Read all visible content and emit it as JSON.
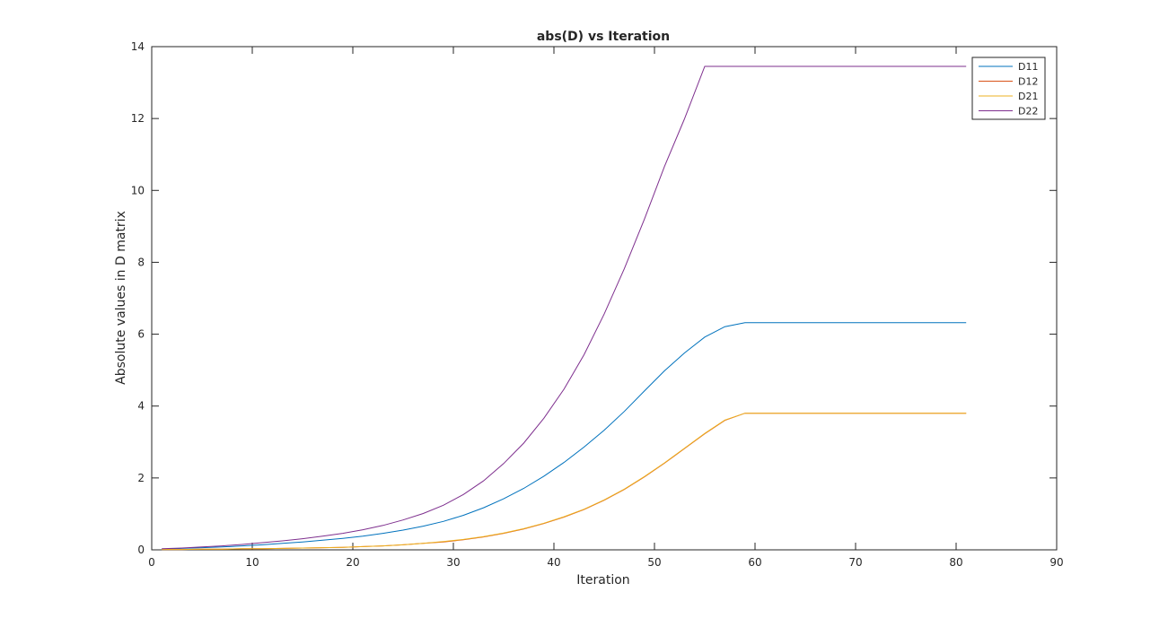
{
  "chart_data": {
    "type": "line",
    "title": "abs(D) vs Iteration",
    "xlabel": "Iteration",
    "ylabel": "Absolute values in D matrix",
    "xlim": [
      0,
      90
    ],
    "ylim": [
      0,
      14
    ],
    "xticks": [
      0,
      10,
      20,
      30,
      40,
      50,
      60,
      70,
      80,
      90
    ],
    "yticks": [
      0,
      2,
      4,
      6,
      8,
      10,
      12,
      14
    ],
    "grid": false,
    "legend_position": "top-right",
    "x": [
      1,
      3,
      5,
      7,
      9,
      11,
      13,
      15,
      17,
      19,
      21,
      23,
      25,
      27,
      29,
      31,
      33,
      35,
      37,
      39,
      41,
      43,
      45,
      47,
      49,
      51,
      53,
      55,
      57,
      59,
      61,
      63,
      65,
      67,
      69,
      71,
      73,
      75,
      77,
      79,
      81
    ],
    "series": [
      {
        "name": "D11",
        "color": "#0072bd",
        "values": [
          0.02,
          0.04,
          0.06,
          0.08,
          0.11,
          0.14,
          0.18,
          0.22,
          0.27,
          0.32,
          0.38,
          0.46,
          0.55,
          0.66,
          0.79,
          0.96,
          1.17,
          1.42,
          1.71,
          2.05,
          2.43,
          2.86,
          3.33,
          3.85,
          4.42,
          4.98,
          5.48,
          5.92,
          6.21,
          6.32,
          6.32,
          6.32,
          6.32,
          6.32,
          6.32,
          6.32,
          6.32,
          6.32,
          6.32,
          6.32,
          6.32
        ]
      },
      {
        "name": "D12",
        "color": "#d95319",
        "values": [
          0.01,
          0.01,
          0.02,
          0.02,
          0.03,
          0.03,
          0.04,
          0.05,
          0.06,
          0.07,
          0.09,
          0.11,
          0.14,
          0.18,
          0.22,
          0.28,
          0.36,
          0.46,
          0.58,
          0.73,
          0.91,
          1.12,
          1.38,
          1.68,
          2.03,
          2.41,
          2.82,
          3.23,
          3.6,
          3.8,
          3.8,
          3.8,
          3.8,
          3.8,
          3.8,
          3.8,
          3.8,
          3.8,
          3.8,
          3.8,
          3.8
        ]
      },
      {
        "name": "D21",
        "color": "#edb120",
        "values": [
          0.01,
          0.01,
          0.02,
          0.02,
          0.03,
          0.03,
          0.04,
          0.05,
          0.06,
          0.07,
          0.09,
          0.11,
          0.14,
          0.18,
          0.23,
          0.29,
          0.37,
          0.47,
          0.59,
          0.74,
          0.92,
          1.13,
          1.39,
          1.69,
          2.04,
          2.42,
          2.83,
          3.24,
          3.61,
          3.8,
          3.8,
          3.8,
          3.8,
          3.8,
          3.8,
          3.8,
          3.8,
          3.8,
          3.8,
          3.8,
          3.8
        ]
      },
      {
        "name": "D22",
        "color": "#7e2f8e",
        "values": [
          0.03,
          0.05,
          0.08,
          0.11,
          0.15,
          0.2,
          0.25,
          0.31,
          0.38,
          0.46,
          0.56,
          0.68,
          0.83,
          1.01,
          1.24,
          1.54,
          1.92,
          2.4,
          2.97,
          3.66,
          4.47,
          5.43,
          6.56,
          7.82,
          9.2,
          10.67,
          12.0,
          13.45,
          13.45,
          13.45,
          13.45,
          13.45,
          13.45,
          13.45,
          13.45,
          13.45,
          13.45,
          13.45,
          13.45,
          13.45,
          13.45
        ]
      }
    ]
  }
}
